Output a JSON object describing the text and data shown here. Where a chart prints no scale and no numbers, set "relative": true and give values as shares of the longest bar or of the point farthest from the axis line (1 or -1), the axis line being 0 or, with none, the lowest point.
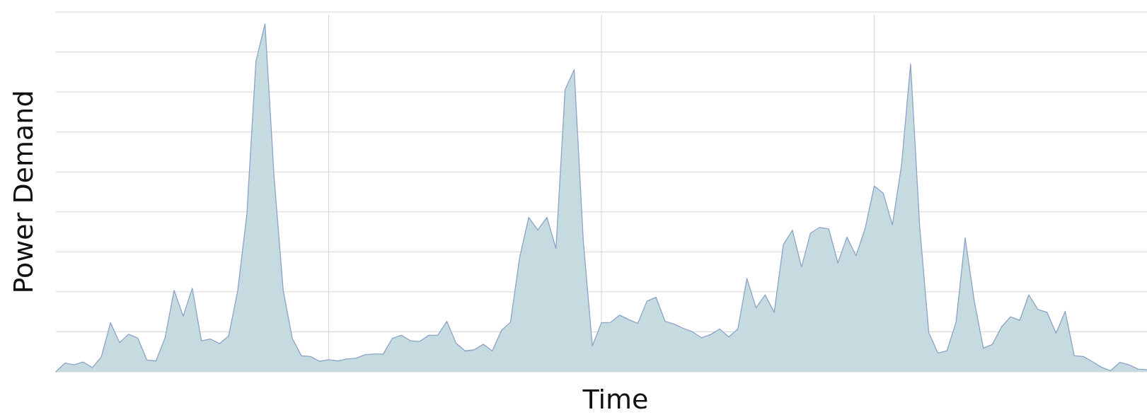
{
  "chart_data": {
    "type": "area",
    "xlabel": "Time",
    "ylabel": "Power Demand",
    "relative": true,
    "grid": true,
    "categories": [
      null,
      null,
      null,
      null,
      null,
      null,
      null,
      null,
      null,
      null,
      null,
      null,
      null,
      null,
      null,
      null,
      null,
      null,
      null,
      null,
      null,
      null,
      null,
      null,
      null,
      null,
      null,
      null,
      null,
      null,
      null,
      null,
      null,
      null,
      null,
      null,
      null,
      null,
      null,
      null,
      null,
      null,
      null,
      null,
      null,
      null,
      null,
      null,
      null,
      null,
      null,
      null,
      null,
      null,
      null,
      null,
      null,
      null,
      null,
      null,
      null,
      null,
      null,
      null,
      null,
      null,
      null,
      null,
      null,
      null,
      null,
      null,
      null,
      null,
      null,
      null,
      null,
      null,
      null,
      null,
      null,
      null,
      null,
      null,
      null,
      null,
      null,
      null,
      null,
      null,
      null,
      null,
      null,
      null,
      null,
      null,
      null,
      null,
      null,
      null,
      null,
      null,
      null,
      null,
      null,
      null,
      null,
      null,
      null,
      null,
      null,
      null,
      null,
      null,
      null,
      null,
      null,
      null,
      null,
      null,
      null
    ],
    "series": [
      {
        "color": "#8ba3c9",
        "values": [
          0,
          0.025,
          0.02,
          0.028,
          0.012,
          0.043,
          0.141,
          0.084,
          0.108,
          0.097,
          0.034,
          0.031,
          0.097,
          0.234,
          0.16,
          0.24,
          0.089,
          0.094,
          0.081,
          0.103,
          0.234,
          0.452,
          0.893,
          1,
          0.559,
          0.234,
          0.096,
          0.046,
          0.044,
          0.03,
          0.035,
          0.031,
          0.037,
          0.039,
          0.049,
          0.051,
          0.051,
          0.096,
          0.105,
          0.089,
          0.087,
          0.105,
          0.105,
          0.145,
          0.083,
          0.06,
          0.063,
          0.079,
          0.06,
          0.119,
          0.143,
          0.328,
          0.444,
          0.408,
          0.444,
          0.354,
          0.811,
          0.869,
          0.378,
          0.074,
          0.141,
          0.142,
          0.163,
          0.15,
          0.139,
          0.203,
          0.214,
          0.145,
          0.137,
          0.125,
          0.115,
          0.098,
          0.107,
          0.123,
          0.1,
          0.123,
          0.268,
          0.184,
          0.221,
          0.171,
          0.365,
          0.407,
          0.301,
          0.399,
          0.415,
          0.411,
          0.313,
          0.387,
          0.334,
          0.412,
          0.534,
          0.513,
          0.422,
          0.594,
          0.885,
          0.418,
          0.113,
          0.054,
          0.06,
          0.143,
          0.385,
          0.204,
          0.068,
          0.079,
          0.129,
          0.158,
          0.148,
          0.221,
          0.179,
          0.171,
          0.111,
          0.174,
          0.046,
          0.044,
          0.029,
          0.013,
          0.003,
          0.027,
          0.02,
          0.008,
          0.006
        ]
      }
    ]
  }
}
